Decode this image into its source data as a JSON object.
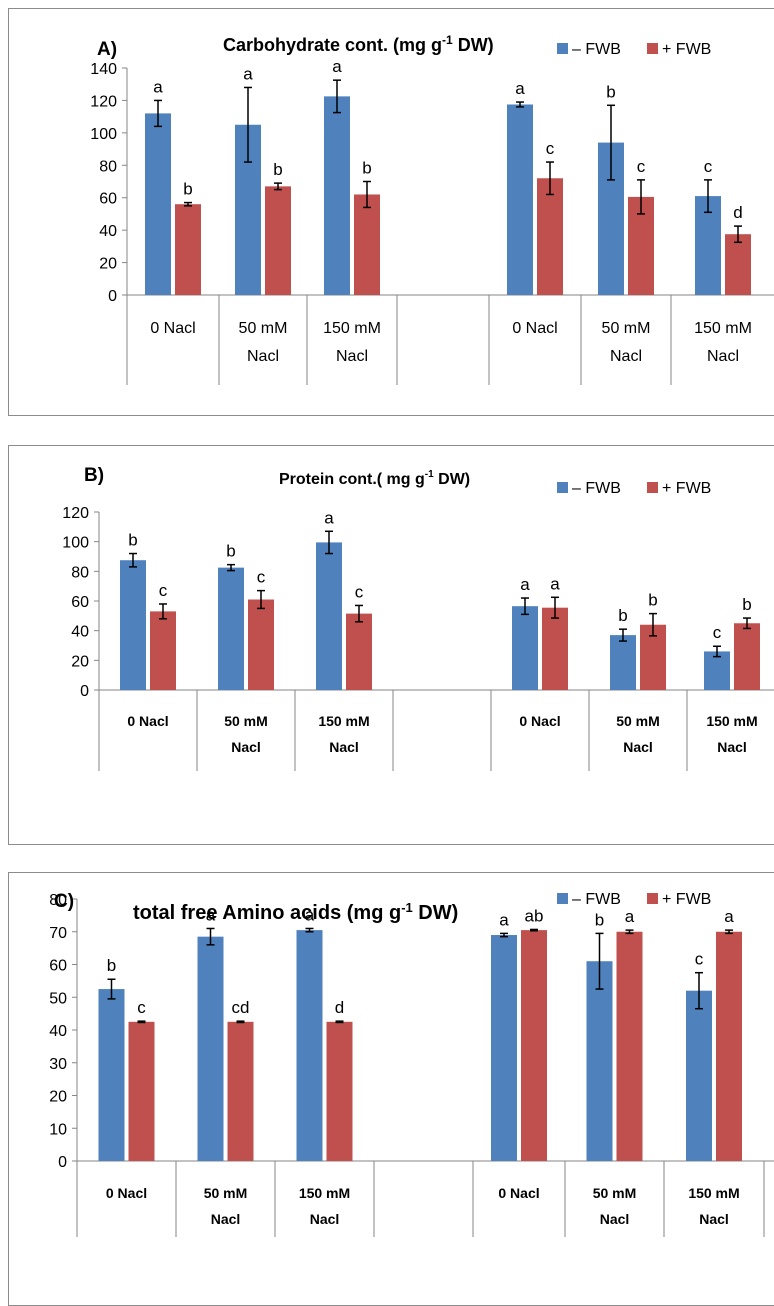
{
  "colors": {
    "minus": "#4f81bd",
    "plus": "#c0504d",
    "axis": "#868686"
  },
  "chart_data": [
    {
      "type": "bar",
      "panel_label": "A)",
      "title_main": "Carbohydrate cont. (mg g",
      "title_sup": "-1",
      "title_end": " DW)",
      "legend": [
        "– FWB",
        "+ FWB"
      ],
      "legend_placement": "top-right",
      "ylim": [
        0,
        140
      ],
      "yticks": [
        0,
        20,
        40,
        60,
        80,
        100,
        120,
        140
      ],
      "categories": [
        [
          "0 Nacl"
        ],
        [
          "50 mM",
          "Nacl"
        ],
        [
          "150 mM",
          "Nacl"
        ],
        [
          ""
        ],
        [
          "0 Nacl"
        ],
        [
          "50 mM",
          "Nacl"
        ],
        [
          "150 mM",
          "Nacl"
        ]
      ],
      "series": [
        {
          "name": "– FWB",
          "values": [
            112,
            105,
            122.5,
            null,
            117.5,
            94,
            61
          ],
          "errors": [
            8,
            23,
            10,
            null,
            1.5,
            23,
            10
          ],
          "letters": [
            "a",
            "a",
            "a",
            "",
            "a",
            "b",
            "c"
          ]
        },
        {
          "name": "+ FWB",
          "values": [
            56,
            67,
            62,
            null,
            72,
            60.5,
            37.5
          ],
          "errors": [
            1,
            2,
            8,
            null,
            10,
            10.5,
            5
          ],
          "letters": [
            "b",
            "b",
            "b",
            "",
            "c",
            "c",
            "d"
          ]
        }
      ]
    },
    {
      "type": "bar",
      "panel_label": "B)",
      "title_main": "Protein cont.( mg g",
      "title_sup": "-1",
      "title_end": " DW)",
      "legend": [
        "– FWB",
        "+ FWB"
      ],
      "legend_placement": "top-right",
      "ylim": [
        0,
        120
      ],
      "yticks": [
        0,
        20,
        40,
        60,
        80,
        100,
        120
      ],
      "categories": [
        [
          "0 Nacl"
        ],
        [
          "50 mM",
          "Nacl"
        ],
        [
          "150 mM",
          "Nacl"
        ],
        [
          ""
        ],
        [
          "0 Nacl"
        ],
        [
          "50 mM",
          "Nacl"
        ],
        [
          "150 mM",
          "Nacl"
        ]
      ],
      "series": [
        {
          "name": "– FWB",
          "values": [
            87.5,
            82.5,
            99.5,
            null,
            56.5,
            37,
            26
          ],
          "errors": [
            4.5,
            2,
            7.5,
            null,
            5.5,
            4,
            3.5
          ],
          "letters": [
            "b",
            "b",
            "a",
            "",
            "a",
            "b",
            "c"
          ]
        },
        {
          "name": "+ FWB",
          "values": [
            53,
            61,
            51.5,
            null,
            55.5,
            44,
            45
          ],
          "errors": [
            5,
            6,
            5.5,
            null,
            7,
            7.5,
            3.5
          ],
          "letters": [
            "c",
            "c",
            "c",
            "",
            "a",
            "b",
            "b"
          ]
        }
      ]
    },
    {
      "type": "bar",
      "panel_label": "C)",
      "title_main": "total free Amino acids (mg g",
      "title_sup": "-1",
      "title_end": " DW)",
      "legend": [
        "– FWB",
        "+ FWB"
      ],
      "legend_placement": "top-right",
      "ylim": [
        0,
        80
      ],
      "yticks": [
        0,
        10,
        20,
        30,
        40,
        50,
        60,
        70,
        80
      ],
      "categories": [
        [
          "0 Nacl"
        ],
        [
          "50 mM",
          "Nacl"
        ],
        [
          "150 mM",
          "Nacl"
        ],
        [
          ""
        ],
        [
          "0 Nacl"
        ],
        [
          "50 mM",
          "Nacl"
        ],
        [
          "150 mM",
          "Nacl"
        ]
      ],
      "series": [
        {
          "name": "– FWB",
          "values": [
            52.5,
            68.5,
            70.5,
            null,
            69,
            61,
            52
          ],
          "errors": [
            3,
            2.5,
            0.5,
            null,
            0.5,
            8.5,
            5.5
          ],
          "letters": [
            "b",
            "a",
            "a",
            "",
            "a",
            "b",
            "c"
          ]
        },
        {
          "name": "+ FWB",
          "values": [
            42.5,
            42.5,
            42.5,
            null,
            70.5,
            70,
            70
          ],
          "errors": [
            0.2,
            0.2,
            0.2,
            null,
            0.2,
            0.5,
            0.5
          ],
          "letters": [
            "c",
            "cd",
            "d",
            "",
            "ab",
            "a",
            "a"
          ]
        }
      ]
    }
  ]
}
